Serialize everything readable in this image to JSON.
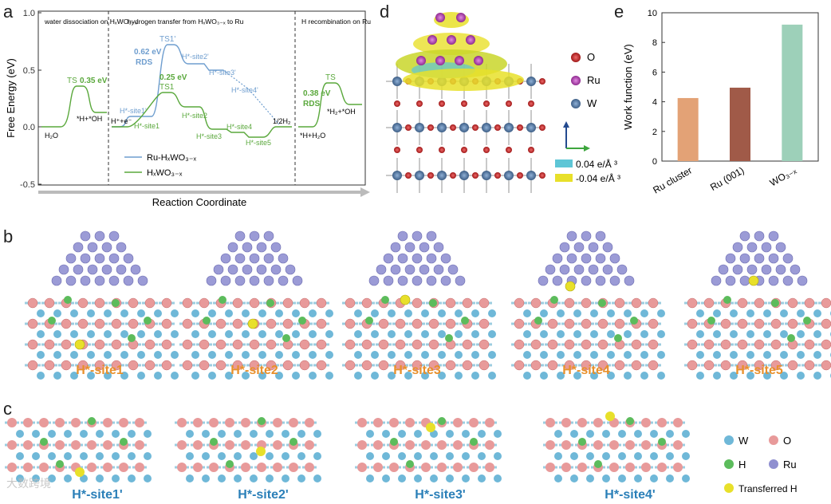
{
  "panels": {
    "a": "a",
    "b": "b",
    "c": "c",
    "d": "d",
    "e": "e"
  },
  "chart_data": [
    {
      "type": "line",
      "ylabel": "Free Energy  (eV)",
      "xlabel": "Reaction Coordinate",
      "ylim": [
        -0.5,
        1.0
      ],
      "yticks": [
        "1.0",
        "0.5",
        "0.0",
        "-0.5"
      ],
      "sections": [
        "water dissociation on HₓWO₃₋ₓ",
        "hydrogen transfer from HₓWO₃₋ₓ to Ru",
        "H recombination on Ru"
      ],
      "series": [
        {
          "name": "Ru-HₓWO₃₋ₓ",
          "color": "#6f9ecf"
        },
        {
          "name": "HₓWO₃₋ₓ",
          "color": "#5aa83c"
        }
      ],
      "labels": {
        "h2o": "H₂O",
        "h_oh": "*H+*OH",
        "ts1": "TS",
        "e035": "0.35 eV",
        "h_e": "H⁺+e⁻",
        "site1p": "H*-site1'",
        "site1": "H*-site1",
        "ts1p": "TS1'",
        "e062": "0.62 eV",
        "rds1": "RDS",
        "site2p": "H*-site2'",
        "site3p": "H*-site3'",
        "site4p": "H*-site4'",
        "e025": "0.25 eV",
        "ts1g": "TS1",
        "site2": "H*-site2",
        "site3": "H*-site3",
        "site4": "H*-site4",
        "site5": "H*-site5",
        "half_h2": "1/2H₂",
        "ts3": "TS",
        "e038": "0.38 eV",
        "rds3": "RDS",
        "h2_oh": "*H₂+*OH",
        "h_h2o": "*H+H₂O"
      }
    },
    {
      "type": "bar",
      "ylabel": "Work function (eV)",
      "categories": [
        "Ru cluster",
        "Ru (001)",
        "WO₃₋ₓ"
      ],
      "values": [
        4.25,
        4.95,
        9.2
      ],
      "colors": [
        "#e3a276",
        "#a05a48",
        "#9dd0b9"
      ],
      "ylim": [
        0,
        10
      ],
      "yticks": [
        "0",
        "2",
        "4",
        "6",
        "8",
        "10"
      ]
    }
  ],
  "panel_d": {
    "legend": [
      "O",
      "Ru",
      "W"
    ],
    "legend_colors": [
      "#cc2a2a",
      "#c04cc0",
      "#5a7fa8"
    ],
    "charge": [
      "0.04 e/Å ³",
      "-0.04 e/Å ³"
    ],
    "charge_colors": [
      "#5ec6d6",
      "#e8e02a"
    ]
  },
  "panel_b": {
    "sites": [
      "H*-site1",
      "H*-site2",
      "H*-site3",
      "H*-site4",
      "H*-site5"
    ]
  },
  "panel_c": {
    "sites": [
      "H*-site1'",
      "H*-site2'",
      "H*-site3'",
      "H*-site4'"
    ],
    "legend": [
      "W",
      "O",
      "H",
      "Ru",
      "Transferred H"
    ],
    "legend_colors": [
      "#6fb8d8",
      "#e89a9a",
      "#5cbc5c",
      "#8f8fd0",
      "#e8e02a"
    ]
  },
  "watermark": "大数跨境"
}
